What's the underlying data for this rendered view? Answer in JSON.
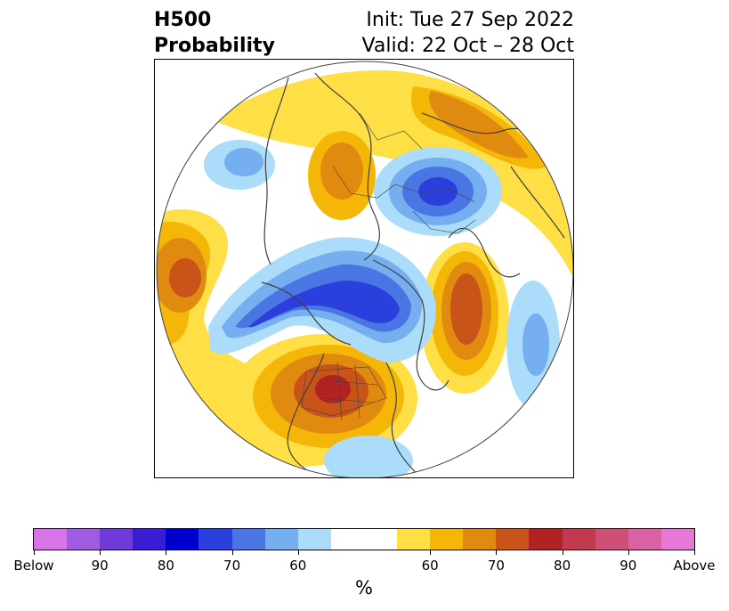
{
  "header": {
    "title_line1": "H500",
    "title_line2": "Probability",
    "init": "Init: Tue 27 Sep 2022",
    "valid": "Valid: 22 Oct – 28 Oct"
  },
  "colorbar": {
    "unit": "%",
    "below_colors": [
      "#d874e8",
      "#9f5ce0",
      "#6e3ad8",
      "#3a1dd2",
      "#0000cd",
      "#2a3fdc",
      "#4a76e4",
      "#75aff0",
      "#abdcfa"
    ],
    "neutral_color": "#ffffff",
    "above_colors": [
      "#fedf45",
      "#f4b708",
      "#e08a10",
      "#c8541a",
      "#b12222",
      "#c23a50",
      "#ce5078",
      "#da62a4",
      "#e878d8"
    ],
    "tick_labels": [
      "Below",
      "90",
      "80",
      "70",
      "60",
      "60",
      "70",
      "80",
      "90",
      "Above"
    ]
  },
  "colors": {
    "coastline": "#404040",
    "border": "#404040"
  }
}
